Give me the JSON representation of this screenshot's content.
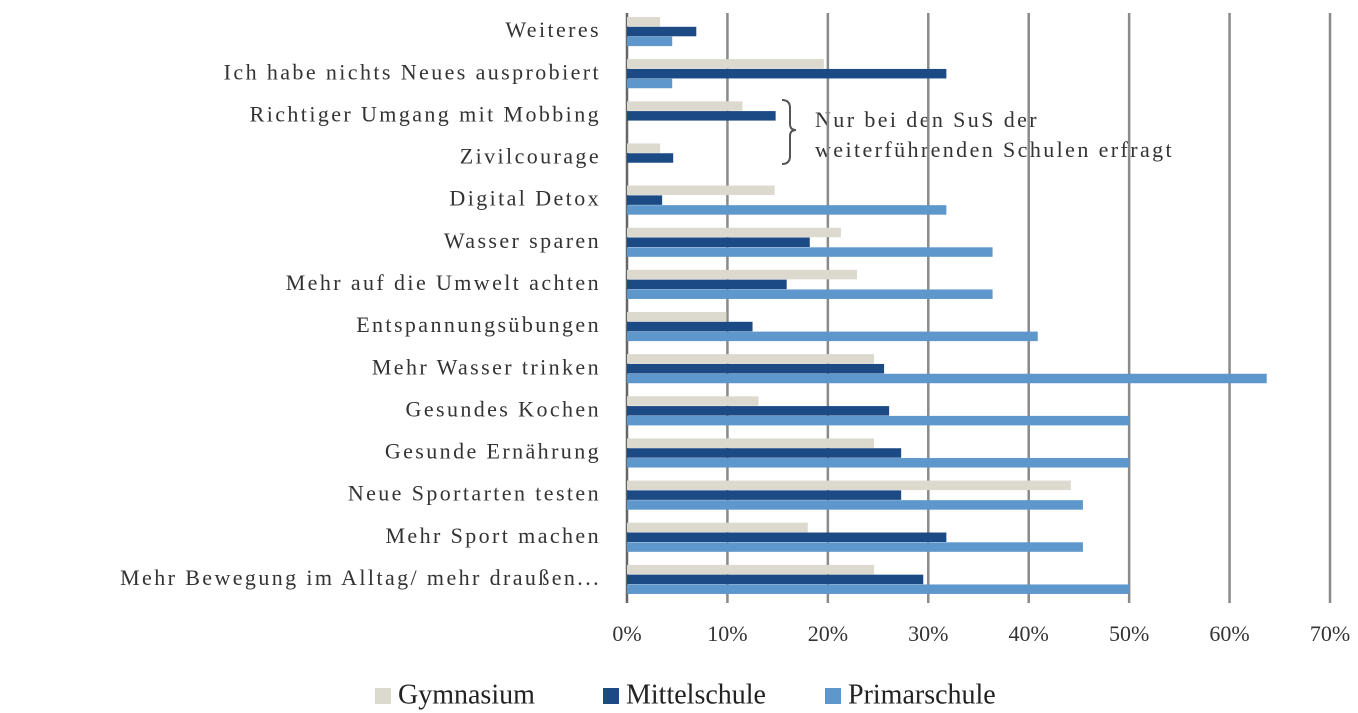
{
  "chart_data": {
    "type": "hbar",
    "categories": [
      "Weiteres",
      "Ich habe nichts Neues ausprobiert",
      "Richtiger Umgang mit Mobbing",
      "Zivilcourage",
      "Digital Detox",
      "Wasser sparen",
      "Mehr auf die Umwelt achten",
      "Entspannungsübungen",
      "Mehr Wasser trinken",
      "Gesundes Kochen",
      "Gesunde Ernährung",
      "Neue Sportarten testen",
      "Mehr Sport machen",
      "Mehr Bewegung im Alltag/ mehr draußen..."
    ],
    "series": [
      {
        "name": "Gymnasium",
        "color": "#dcd9cf",
        "values": [
          3.3,
          19.6,
          11.5,
          3.3,
          14.7,
          21.3,
          22.9,
          9.9,
          24.6,
          13.1,
          24.6,
          44.2,
          18.0,
          24.6
        ]
      },
      {
        "name": "Mittelschule",
        "color": "#1c4a85",
        "values": [
          6.9,
          31.8,
          14.8,
          4.6,
          3.5,
          18.2,
          15.9,
          12.5,
          25.6,
          26.1,
          27.3,
          27.3,
          31.8,
          29.5
        ]
      },
      {
        "name": "Primarschule",
        "color": "#5e97cb",
        "values": [
          4.5,
          4.5,
          null,
          null,
          31.8,
          36.4,
          36.4,
          40.9,
          63.7,
          50.0,
          50.0,
          45.4,
          45.4,
          50.0
        ]
      }
    ],
    "xlim": [
      0,
      70
    ],
    "xticks": [
      {
        "value": 0,
        "label": "0%"
      },
      {
        "value": 10,
        "label": "10%"
      },
      {
        "value": 20,
        "label": "20%"
      },
      {
        "value": 30,
        "label": "30%"
      },
      {
        "value": 40,
        "label": "40%"
      },
      {
        "value": 50,
        "label": "50%"
      },
      {
        "value": 60,
        "label": "60%"
      },
      {
        "value": 70,
        "label": "70%"
      }
    ],
    "grid": true,
    "legend": "bottom",
    "annotation": [
      "Nur bei den SuS der",
      "weiterführenden Schulen erfragt"
    ]
  }
}
